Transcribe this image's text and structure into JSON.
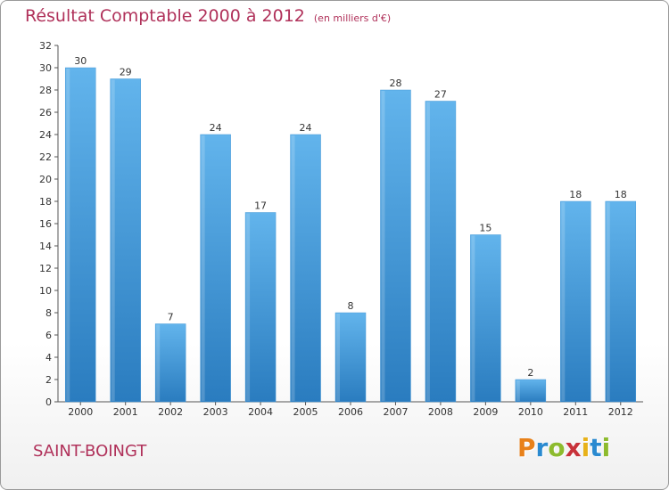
{
  "chart_data": {
    "type": "bar",
    "title": "Résultat Comptable 2000 à 2012",
    "subtitle": "(en milliers d'€)",
    "categories": [
      "2000",
      "2001",
      "2002",
      "2003",
      "2004",
      "2005",
      "2006",
      "2007",
      "2008",
      "2009",
      "2010",
      "2011",
      "2012"
    ],
    "values": [
      30,
      29,
      7,
      24,
      17,
      24,
      8,
      28,
      27,
      15,
      2,
      18,
      18
    ],
    "ylim": [
      0,
      32
    ],
    "yticks": [
      0,
      2,
      4,
      6,
      8,
      10,
      12,
      14,
      16,
      18,
      20,
      22,
      24,
      26,
      28,
      30,
      32
    ],
    "xlabel": "",
    "ylabel": "",
    "grid": false,
    "bar_color_top": "#62b4ec",
    "bar_color_bottom": "#2a7cbf"
  },
  "footer": {
    "commune": "SAINT-BOINGT",
    "logo": [
      "P",
      "r",
      "o",
      "x",
      "i",
      "t",
      "i"
    ],
    "logo_colors": [
      "#e8811a",
      "#2a8ad0",
      "#8dbb2e",
      "#c8323a",
      "#e8b21a",
      "#2a8ad0",
      "#8dbb2e"
    ]
  }
}
